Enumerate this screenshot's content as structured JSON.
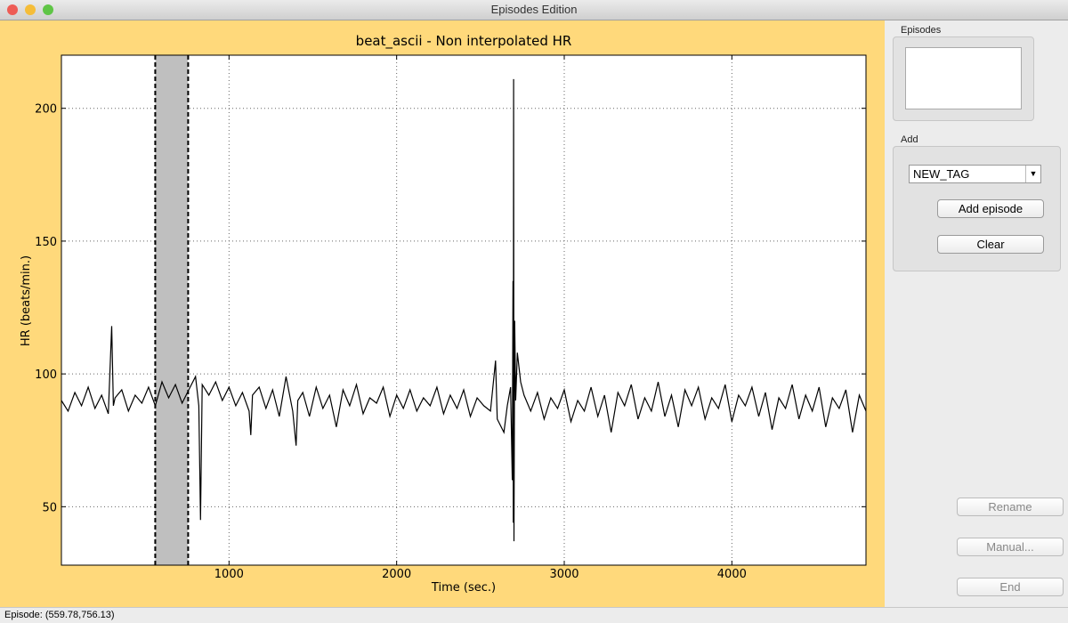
{
  "window": {
    "title": "Episodes Edition"
  },
  "panel": {
    "episodes_label": "Episodes",
    "add_label": "Add",
    "tag": "NEW_TAG",
    "buttons": [
      "Add episode",
      "Clear"
    ],
    "actions": [
      "Rename",
      "Manual...",
      "End"
    ]
  },
  "status": "Episode: (559.78,756.13)",
  "chart_data": {
    "type": "line",
    "title": "beat_ascii - Non interpolated HR",
    "x_label": "Time (sec.)",
    "y_label": "HR (beats/min.)",
    "xlim": [
      0,
      4800
    ],
    "ylim": [
      28,
      220
    ],
    "xticks": [
      1000,
      2000,
      3000,
      4000
    ],
    "yticks": [
      50,
      100,
      150,
      200
    ],
    "grid": true,
    "color": "#000000",
    "span": [
      559.78,
      756.13
    ],
    "span_color": "#bfbfbf",
    "x": [
      0,
      40,
      80,
      120,
      160,
      200,
      240,
      280,
      300,
      310,
      320,
      360,
      400,
      440,
      480,
      520,
      560,
      600,
      640,
      680,
      720,
      760,
      800,
      820,
      830,
      840,
      880,
      920,
      960,
      1000,
      1040,
      1080,
      1120,
      1130,
      1140,
      1180,
      1220,
      1260,
      1300,
      1340,
      1380,
      1400,
      1410,
      1440,
      1480,
      1520,
      1560,
      1600,
      1640,
      1680,
      1720,
      1760,
      1800,
      1840,
      1880,
      1920,
      1960,
      2000,
      2040,
      2080,
      2120,
      2160,
      2200,
      2240,
      2280,
      2320,
      2360,
      2400,
      2440,
      2480,
      2520,
      2560,
      2590,
      2600,
      2640,
      2660,
      2680,
      2690,
      2694,
      2696,
      2698,
      2700,
      2704,
      2710,
      2720,
      2740,
      2760,
      2800,
      2840,
      2880,
      2920,
      2960,
      3000,
      3040,
      3080,
      3120,
      3160,
      3200,
      3240,
      3280,
      3320,
      3360,
      3400,
      3440,
      3480,
      3520,
      3560,
      3600,
      3640,
      3680,
      3720,
      3760,
      3800,
      3840,
      3880,
      3920,
      3960,
      4000,
      4040,
      4080,
      4120,
      4160,
      4200,
      4240,
      4280,
      4320,
      4360,
      4400,
      4440,
      4480,
      4520,
      4560,
      4600,
      4640,
      4680,
      4720,
      4760,
      4800
    ],
    "values": [
      90,
      86,
      93,
      88,
      95,
      87,
      92,
      85,
      118,
      88,
      91,
      94,
      86,
      92,
      89,
      95,
      88,
      97,
      91,
      96,
      89,
      94,
      99,
      88,
      45,
      96,
      92,
      97,
      90,
      95,
      88,
      93,
      86,
      77,
      92,
      95,
      87,
      94,
      84,
      99,
      86,
      73,
      90,
      93,
      84,
      95,
      87,
      92,
      80,
      94,
      88,
      96,
      85,
      91,
      89,
      95,
      84,
      92,
      87,
      94,
      86,
      91,
      88,
      95,
      85,
      92,
      87,
      94,
      84,
      91,
      88,
      86,
      105,
      83,
      78,
      88,
      95,
      60,
      135,
      44,
      211,
      37,
      120,
      90,
      108,
      97,
      92,
      86,
      93,
      83,
      91,
      87,
      94,
      82,
      90,
      86,
      95,
      84,
      92,
      78,
      93,
      88,
      96,
      83,
      91,
      86,
      97,
      84,
      92,
      80,
      94,
      88,
      95,
      83,
      91,
      87,
      96,
      82,
      92,
      88,
      95,
      84,
      93,
      79,
      91,
      87,
      96,
      83,
      92,
      86,
      95,
      80,
      91,
      87,
      94,
      78,
      92,
      86
    ]
  }
}
